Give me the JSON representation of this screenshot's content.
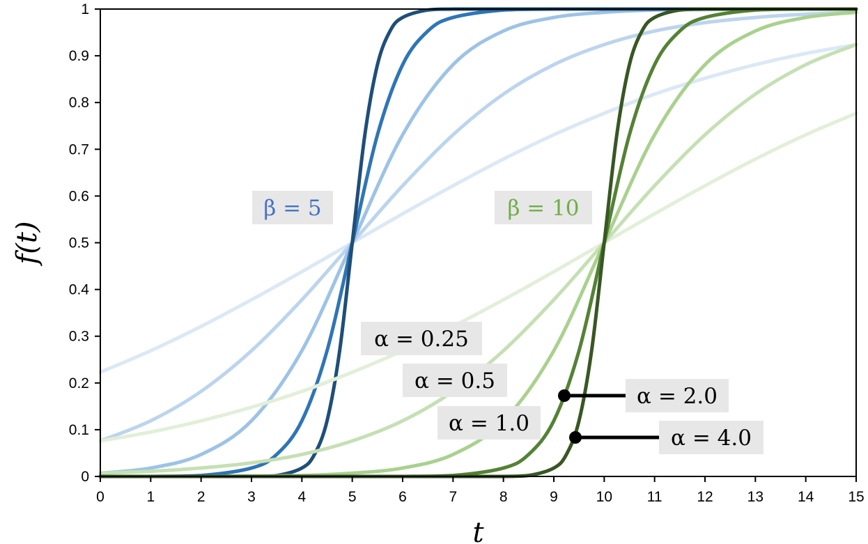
{
  "chart_data": {
    "type": "line",
    "xlabel": "t",
    "ylabel": "f(t)",
    "xlim": [
      0,
      15
    ],
    "ylim": [
      0,
      1
    ],
    "xticks": [
      "0",
      "1",
      "2",
      "3",
      "4",
      "5",
      "6",
      "7",
      "8",
      "9",
      "10",
      "11",
      "12",
      "13",
      "14",
      "15"
    ],
    "yticks": [
      "0",
      "0.1",
      "0.2",
      "0.3",
      "0.4",
      "0.5",
      "0.6",
      "0.7",
      "0.8",
      "0.9",
      "1"
    ],
    "grid": false,
    "legend": "none",
    "series": [
      {
        "group": "β = 5",
        "alpha": 0.25,
        "color": "#dbe8f6",
        "x": [
          0,
          1,
          2,
          3,
          4,
          5,
          6,
          7,
          8,
          9,
          10,
          11,
          12,
          13,
          14,
          15
        ],
        "y": [
          0.223,
          0.269,
          0.321,
          0.378,
          0.438,
          0.5,
          0.562,
          0.622,
          0.679,
          0.731,
          0.777,
          0.818,
          0.852,
          0.881,
          0.905,
          0.924
        ]
      },
      {
        "group": "β = 5",
        "alpha": 0.5,
        "color": "#bcd4ee",
        "x": [
          0,
          1,
          2,
          3,
          4,
          5,
          6,
          7,
          8,
          9,
          10,
          11,
          12,
          13,
          14,
          15
        ],
        "y": [
          0.076,
          0.119,
          0.182,
          0.269,
          0.378,
          0.5,
          0.622,
          0.731,
          0.818,
          0.881,
          0.924,
          0.953,
          0.971,
          0.982,
          0.989,
          0.993
        ]
      },
      {
        "group": "β = 5",
        "alpha": 1.0,
        "color": "#9dc3e6",
        "x": [
          0,
          1,
          2,
          3,
          4,
          5,
          6,
          7,
          8,
          9,
          10,
          11,
          12,
          13,
          14,
          15
        ],
        "y": [
          0.007,
          0.018,
          0.047,
          0.119,
          0.269,
          0.5,
          0.731,
          0.881,
          0.953,
          0.982,
          0.993,
          0.998,
          0.999,
          1.0,
          1.0,
          1.0
        ]
      },
      {
        "group": "β = 5",
        "alpha": 2.0,
        "color": "#2e75b6",
        "x": [
          0,
          1,
          2,
          3,
          3.5,
          4,
          4.5,
          5,
          5.5,
          6,
          6.5,
          7,
          8,
          9,
          10,
          11,
          12,
          13,
          14,
          15
        ],
        "y": [
          0.0,
          0.0,
          0.002,
          0.018,
          0.047,
          0.119,
          0.269,
          0.5,
          0.731,
          0.881,
          0.953,
          0.982,
          0.998,
          1.0,
          1.0,
          1.0,
          1.0,
          1.0,
          1.0,
          1.0
        ]
      },
      {
        "group": "β = 5",
        "alpha": 4.0,
        "color": "#1f4e79",
        "x": [
          0,
          1,
          2,
          3,
          3.5,
          4,
          4.25,
          4.5,
          4.75,
          5,
          5.25,
          5.5,
          5.75,
          6,
          6.5,
          7,
          8,
          9,
          10,
          11,
          12,
          13,
          14,
          15
        ],
        "y": [
          0.0,
          0.0,
          0.0,
          0.0,
          0.002,
          0.018,
          0.047,
          0.119,
          0.269,
          0.5,
          0.731,
          0.881,
          0.953,
          0.982,
          0.998,
          1.0,
          1.0,
          1.0,
          1.0,
          1.0,
          1.0,
          1.0,
          1.0,
          1.0
        ]
      },
      {
        "group": "β = 10",
        "alpha": 0.25,
        "color": "#e2efd9",
        "x": [
          0,
          1,
          2,
          3,
          4,
          5,
          6,
          7,
          8,
          9,
          10,
          11,
          12,
          13,
          14,
          15
        ],
        "y": [
          0.076,
          0.095,
          0.119,
          0.148,
          0.182,
          0.223,
          0.269,
          0.321,
          0.378,
          0.438,
          0.5,
          0.562,
          0.622,
          0.679,
          0.731,
          0.777
        ]
      },
      {
        "group": "β = 10",
        "alpha": 0.5,
        "color": "#c5e0b4",
        "x": [
          0,
          1,
          2,
          3,
          4,
          5,
          6,
          7,
          8,
          9,
          10,
          11,
          12,
          13,
          14,
          15
        ],
        "y": [
          0.007,
          0.011,
          0.018,
          0.029,
          0.047,
          0.076,
          0.119,
          0.182,
          0.269,
          0.378,
          0.5,
          0.622,
          0.731,
          0.818,
          0.881,
          0.924
        ]
      },
      {
        "group": "β = 10",
        "alpha": 1.0,
        "color": "#a9d18e",
        "x": [
          0,
          1,
          2,
          3,
          4,
          5,
          6,
          7,
          8,
          9,
          10,
          11,
          12,
          13,
          14,
          15
        ],
        "y": [
          0.0,
          0.0,
          0.0,
          0.001,
          0.002,
          0.007,
          0.018,
          0.047,
          0.119,
          0.269,
          0.5,
          0.731,
          0.881,
          0.953,
          0.982,
          0.993
        ]
      },
      {
        "group": "β = 10",
        "alpha": 2.0,
        "color": "#548235",
        "x": [
          0,
          1,
          2,
          3,
          4,
          5,
          6,
          7,
          8,
          8.5,
          9,
          9.5,
          10,
          10.5,
          11,
          11.5,
          12,
          13,
          14,
          15
        ],
        "y": [
          0.0,
          0.0,
          0.0,
          0.0,
          0.0,
          0.0,
          0.0,
          0.002,
          0.018,
          0.047,
          0.119,
          0.269,
          0.5,
          0.731,
          0.881,
          0.953,
          0.982,
          0.998,
          1.0,
          1.0
        ]
      },
      {
        "group": "β = 10",
        "alpha": 4.0,
        "color": "#385723",
        "x": [
          0,
          1,
          2,
          3,
          4,
          5,
          6,
          7,
          8,
          8.5,
          9,
          9.25,
          9.5,
          9.75,
          10,
          10.25,
          10.5,
          10.75,
          11,
          11.5,
          12,
          13,
          14,
          15
        ],
        "y": [
          0.0,
          0.0,
          0.0,
          0.0,
          0.0,
          0.0,
          0.0,
          0.0,
          0.0,
          0.002,
          0.018,
          0.047,
          0.119,
          0.269,
          0.5,
          0.731,
          0.881,
          0.953,
          0.982,
          0.998,
          1.0,
          1.0,
          1.0,
          1.0
        ]
      }
    ],
    "annotations": [
      {
        "key": "beta5",
        "text": "β = 5",
        "color": "#4472c4"
      },
      {
        "key": "beta10",
        "text": "β = 10",
        "color": "#70ad47"
      },
      {
        "key": "a025",
        "text": "α = 0.25",
        "color": "#000000"
      },
      {
        "key": "a05",
        "text": "α = 0.5",
        "color": "#000000"
      },
      {
        "key": "a10",
        "text": "α = 1.0",
        "color": "#000000"
      },
      {
        "key": "a20",
        "text": "α = 2.0",
        "color": "#000000"
      },
      {
        "key": "a40",
        "text": "α = 4.0",
        "color": "#000000"
      }
    ]
  }
}
